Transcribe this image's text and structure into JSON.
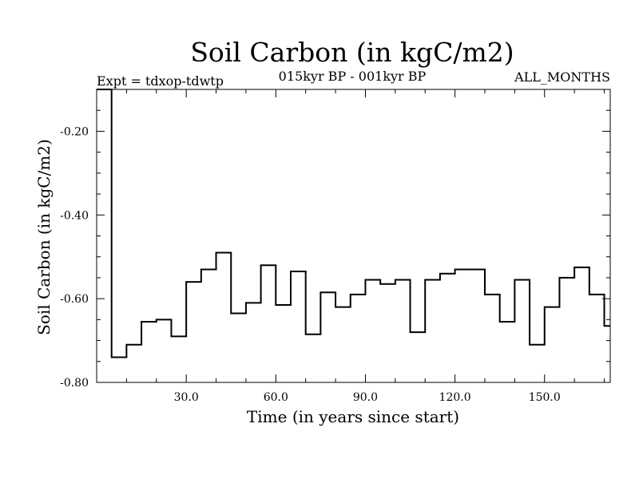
{
  "chart_data": {
    "type": "line",
    "title": "Soil Carbon (in kgC/m2)",
    "subtitle": "015kyr BP - 001kyr BP",
    "experiment_label": "Expt = tdxop-tdwtp",
    "months_label": "ALL_MONTHS",
    "xlabel": "Time (in years since start)",
    "ylabel": "Soil Carbon (in kgC/m2)",
    "xlim": [
      0,
      172
    ],
    "ylim": [
      -0.8,
      -0.1
    ],
    "x_ticks": [
      30,
      60,
      90,
      120,
      150
    ],
    "x_tick_labels": [
      "30.0",
      "60.0",
      "90.0",
      "120.0",
      "150.0"
    ],
    "y_ticks": [
      -0.2,
      -0.4,
      -0.6,
      -0.8
    ],
    "y_tick_labels": [
      "-0.20",
      "-0.40",
      "-0.60",
      "-0.80"
    ],
    "step_width": 5,
    "series": [
      {
        "name": "Soil Carbon",
        "x": [
          0,
          5,
          10,
          15,
          20,
          25,
          30,
          35,
          40,
          45,
          50,
          55,
          60,
          65,
          70,
          75,
          80,
          85,
          90,
          95,
          100,
          105,
          110,
          115,
          120,
          125,
          130,
          135,
          140,
          145,
          150,
          155,
          160,
          165,
          170
        ],
        "values": [
          -0.1,
          -0.74,
          -0.71,
          -0.655,
          -0.65,
          -0.69,
          -0.56,
          -0.53,
          -0.49,
          -0.635,
          -0.61,
          -0.52,
          -0.615,
          -0.535,
          -0.685,
          -0.585,
          -0.62,
          -0.59,
          -0.555,
          -0.565,
          -0.555,
          -0.68,
          -0.555,
          -0.54,
          -0.53,
          -0.53,
          -0.59,
          -0.655,
          -0.555,
          -0.71,
          -0.62,
          -0.55,
          -0.525,
          -0.59,
          -0.665
        ]
      }
    ],
    "grid": false
  }
}
